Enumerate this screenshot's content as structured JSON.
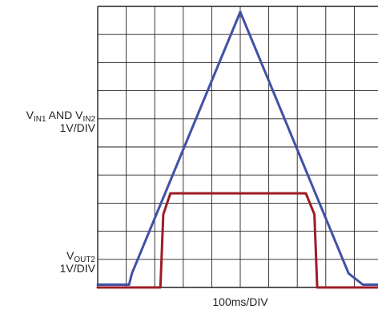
{
  "chart_data": {
    "type": "line",
    "grid": true,
    "divisions": {
      "x": 10,
      "y": 10
    },
    "x_scale": "100ms/DIV",
    "y_labels": [
      {
        "signal_1": "V",
        "sub_1": "IN1",
        "mid": " AND ",
        "signal_2": "V",
        "sub_2": "IN2",
        "scale": "1V/DIV"
      },
      {
        "signal_1": "V",
        "sub_1": "OUT2",
        "scale": "1V/DIV"
      }
    ],
    "x_unit": "divisions",
    "y_unit": "divisions",
    "xlim": [
      0,
      10
    ],
    "ylim": [
      0,
      10
    ],
    "series": [
      {
        "color": "#3f51a5",
        "x": [
          0,
          1.1,
          1.2,
          5.0,
          8.8,
          9.3,
          10
        ],
        "y": [
          0.1,
          0.1,
          0.5,
          9.8,
          0.5,
          0.1,
          0.1
        ]
      },
      {
        "color": "#9c1c25",
        "x": [
          0,
          2.2,
          2.3,
          2.55,
          7.3,
          7.6,
          7.7,
          10
        ],
        "y": [
          0.0,
          0.0,
          2.6,
          3.35,
          3.35,
          2.6,
          0.0,
          0.0
        ]
      }
    ]
  }
}
